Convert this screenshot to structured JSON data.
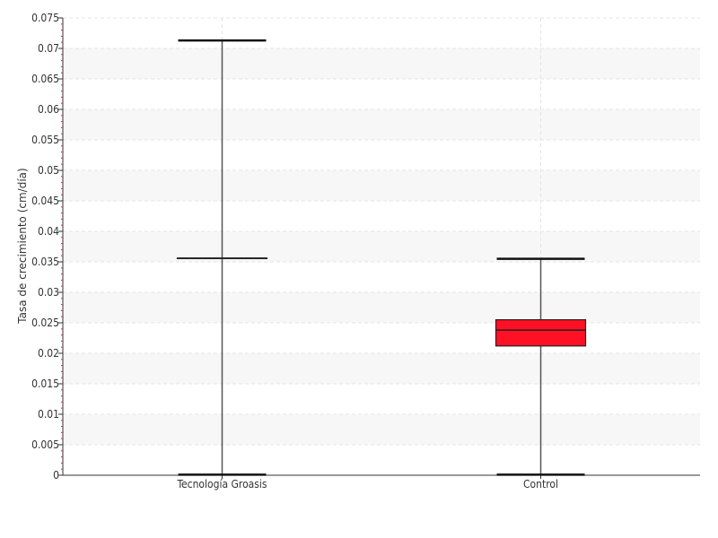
{
  "chart_data": {
    "type": "boxplot",
    "title": "",
    "xlabel": "",
    "ylabel": "Tasa de crecimiento (cm/día)",
    "ylim": [
      0,
      0.075
    ],
    "y_ticks": [
      "0",
      "0.005",
      "0.01",
      "0.015",
      "0.02",
      "0.025",
      "0.03",
      "0.035",
      "0.04",
      "0.045",
      "0.05",
      "0.055",
      "0.06",
      "0.065",
      "0.07",
      "0.075"
    ],
    "y_tick_values": [
      0,
      0.005,
      0.01,
      0.015,
      0.02,
      0.025,
      0.03,
      0.035,
      0.04,
      0.045,
      0.05,
      0.055,
      0.06,
      0.065,
      0.07,
      0.075
    ],
    "grid": true,
    "categories": [
      "Tecnología Groasis",
      "Control"
    ],
    "boxes": [
      {
        "category": "Tecnología Groasis",
        "min": 0.0001,
        "q1": 0.0356,
        "median": 0.0356,
        "q3": 0.0356,
        "max": 0.0713,
        "color": "#1a5c1a"
      },
      {
        "category": "Control",
        "min": 0.0001,
        "q1": 0.0212,
        "median": 0.0238,
        "q3": 0.0255,
        "max": 0.0355,
        "color": "#ff1025"
      }
    ]
  }
}
